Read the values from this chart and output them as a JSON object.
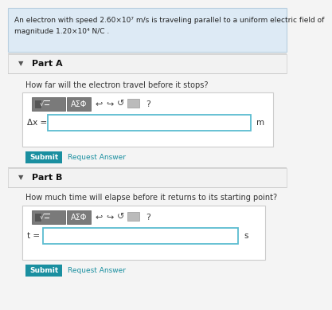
{
  "bg_color": "#f4f4f4",
  "header_bg": "#ddeaf5",
  "header_text_line1": "An electron with speed 2.60×10⁷ m/s is traveling parallel to a uniform electric field of",
  "header_text_line2": "magnitude 1.20×10⁴ N/C .",
  "part_a_label": "Part A",
  "part_b_label": "Part B",
  "part_a_question": "How far will the electron travel before it stops?",
  "part_b_question": "How much time will elapse before it returns to its starting point?",
  "part_a_var": "Δx =",
  "part_b_var": "t =",
  "part_a_unit": "m",
  "part_b_unit": "s",
  "submit_color": "#1a8fa0",
  "request_answer_color": "#1a8fa0",
  "toolbar_bg": "#7a7a7a",
  "input_border": "#5bbcd0",
  "divider_color": "#cccccc",
  "toolbar_text": "ΑΣΦ",
  "panel_border": "#cccccc",
  "white": "#ffffff",
  "dark_btn": "#555555",
  "gray_icon": "#bbbbbb"
}
